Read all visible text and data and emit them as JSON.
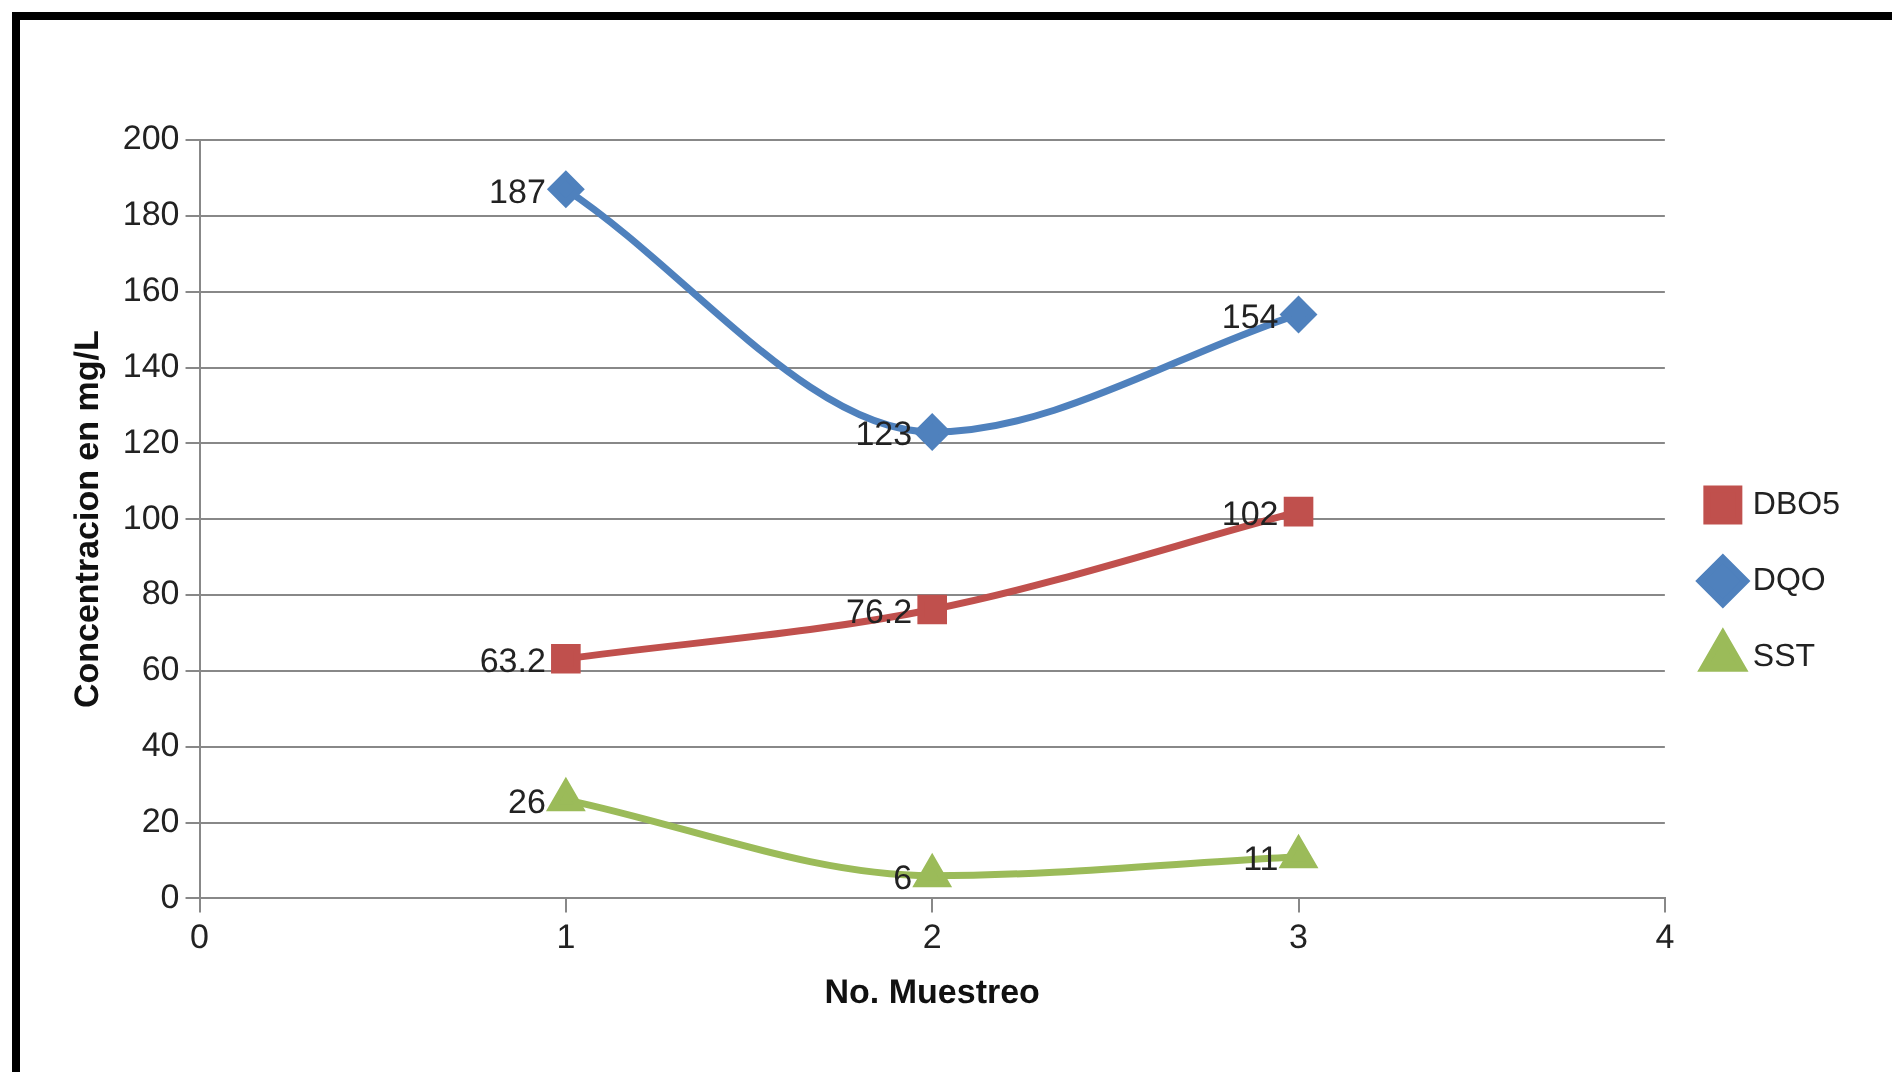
{
  "chart_data": {
    "type": "line",
    "xlabel": "No. Muestreo",
    "ylabel": "Concentracion en mg/L",
    "x": [
      1,
      2,
      3
    ],
    "series": [
      {
        "name": "DBO5",
        "color": "#c0504d",
        "marker": "square",
        "values": [
          63.2,
          76.2,
          102
        ]
      },
      {
        "name": "DQO",
        "color": "#4f81bd",
        "marker": "diamond",
        "values": [
          187,
          123,
          154
        ]
      },
      {
        "name": "SST",
        "color": "#9bbb59",
        "marker": "triangle",
        "values": [
          26,
          6,
          11
        ]
      }
    ],
    "xlim": [
      0,
      4
    ],
    "xticks": [
      0,
      1,
      2,
      3,
      4
    ],
    "ylim": [
      0,
      200
    ],
    "yticks": [
      0,
      20,
      40,
      60,
      80,
      100,
      120,
      140,
      160,
      180,
      200
    ],
    "grid": "y",
    "legend": "right",
    "data_labels": true,
    "line_style": "solid"
  }
}
